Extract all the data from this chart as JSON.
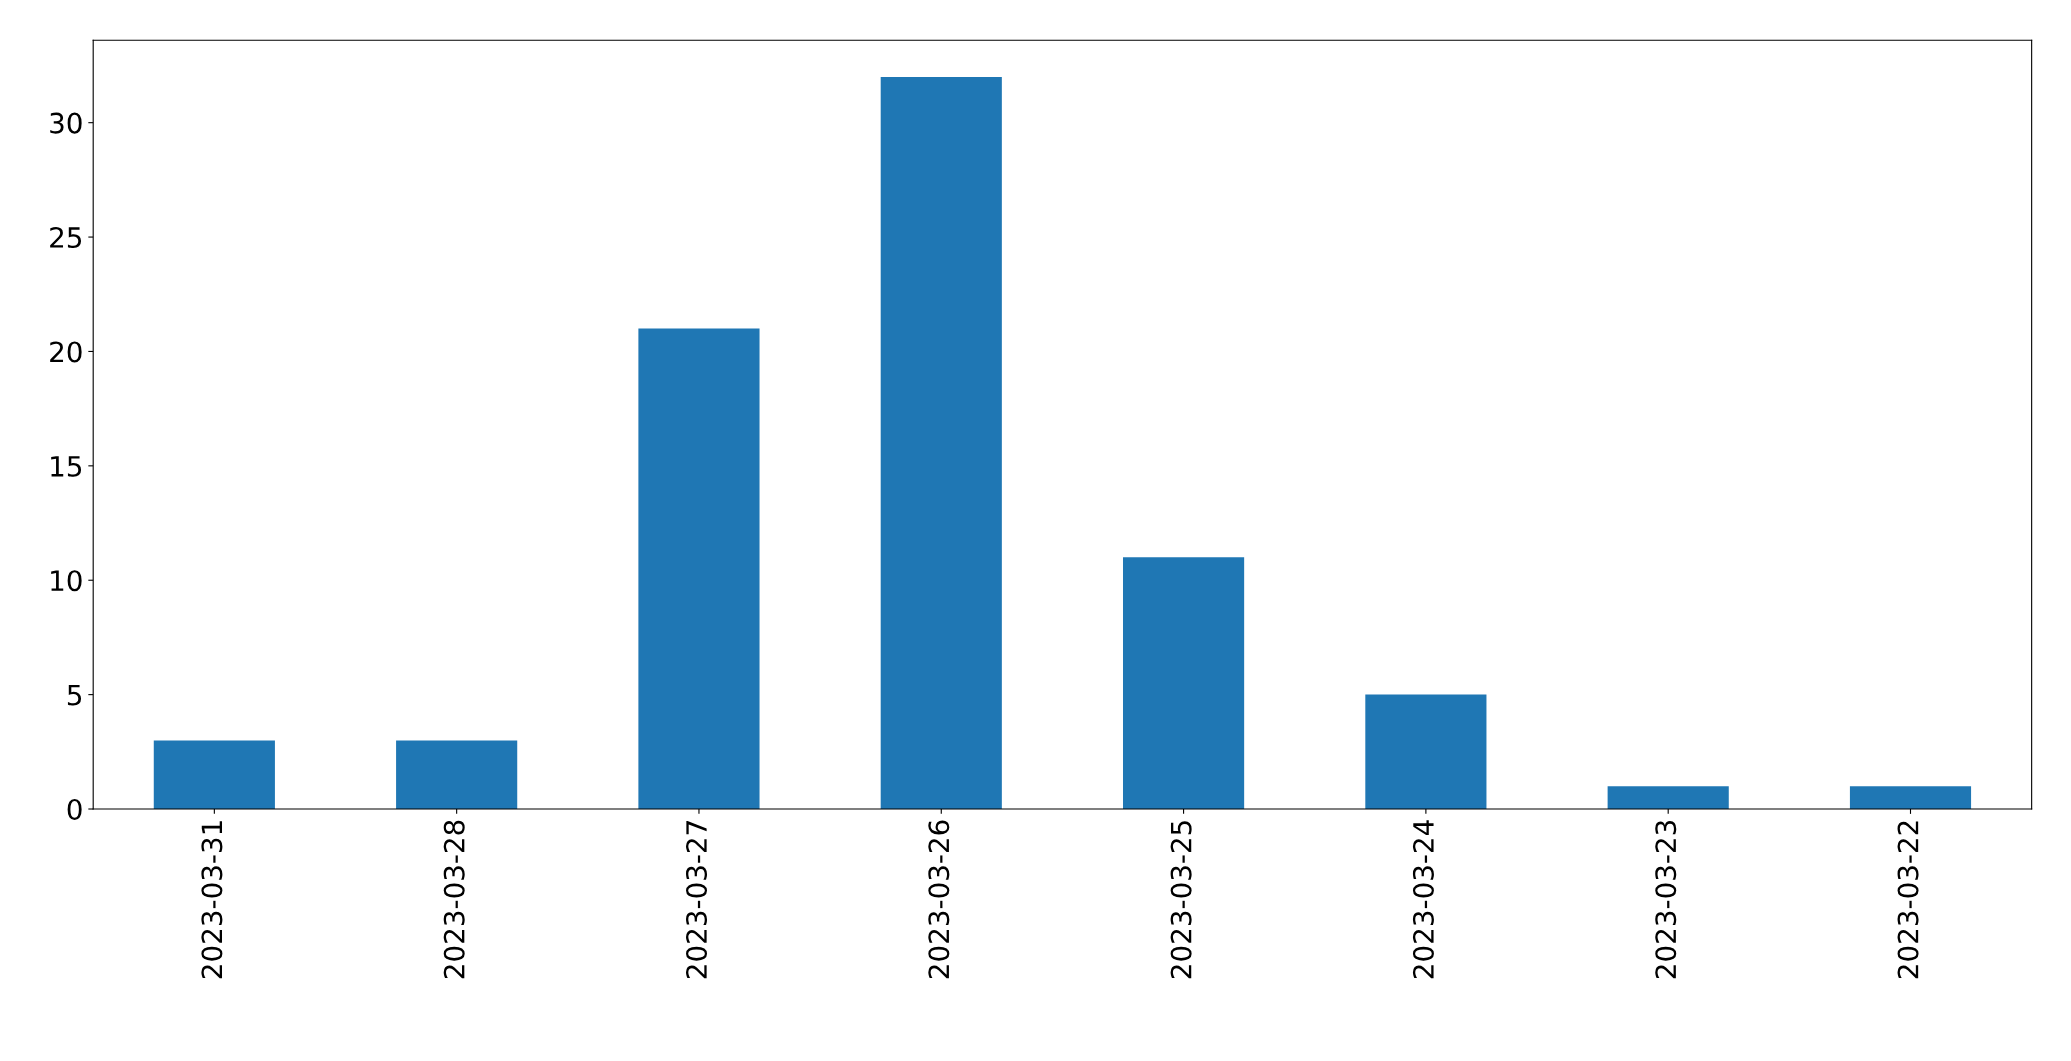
{
  "chart_data": {
    "type": "bar",
    "categories": [
      "2023-03-31",
      "2023-03-28",
      "2023-03-27",
      "2023-03-26",
      "2023-03-25",
      "2023-03-24",
      "2023-03-23",
      "2023-03-22"
    ],
    "values": [
      3,
      3,
      21,
      32,
      11,
      5,
      1,
      1
    ],
    "color": "#1f77b4",
    "ylim": [
      0,
      33.6
    ],
    "yticks": [
      0,
      5,
      10,
      15,
      20,
      25,
      30
    ],
    "grid": false,
    "legend": false
  }
}
